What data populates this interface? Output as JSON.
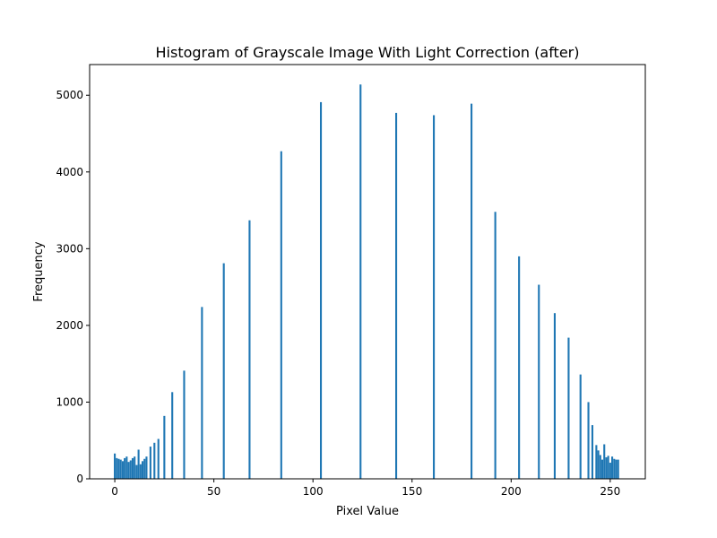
{
  "chart_data": {
    "type": "bar",
    "title": "Histogram of Grayscale Image With Light Correction (after)",
    "xlabel": "Pixel Value",
    "ylabel": "Frequency",
    "xlim": [
      -12.7,
      267.7
    ],
    "ylim": [
      0,
      5400
    ],
    "xticks": [
      0,
      50,
      100,
      150,
      200,
      250
    ],
    "yticks": [
      0,
      1000,
      2000,
      3000,
      4000,
      5000
    ],
    "bar_color": "#1f77b4",
    "grid": false,
    "bins": [
      {
        "x": 0,
        "v": 330
      },
      {
        "x": 1,
        "v": 270
      },
      {
        "x": 2,
        "v": 260
      },
      {
        "x": 3,
        "v": 250
      },
      {
        "x": 4,
        "v": 230
      },
      {
        "x": 5,
        "v": 270
      },
      {
        "x": 6,
        "v": 290
      },
      {
        "x": 7,
        "v": 220
      },
      {
        "x": 8,
        "v": 240
      },
      {
        "x": 9,
        "v": 270
      },
      {
        "x": 10,
        "v": 290
      },
      {
        "x": 11,
        "v": 180
      },
      {
        "x": 12,
        "v": 380
      },
      {
        "x": 13,
        "v": 190
      },
      {
        "x": 14,
        "v": 230
      },
      {
        "x": 15,
        "v": 260
      },
      {
        "x": 16,
        "v": 290
      },
      {
        "x": 18,
        "v": 420
      },
      {
        "x": 20,
        "v": 470
      },
      {
        "x": 22,
        "v": 520
      },
      {
        "x": 25,
        "v": 820
      },
      {
        "x": 29,
        "v": 1130
      },
      {
        "x": 35,
        "v": 1410
      },
      {
        "x": 44,
        "v": 2240
      },
      {
        "x": 55,
        "v": 2810
      },
      {
        "x": 68,
        "v": 3370
      },
      {
        "x": 84,
        "v": 4270
      },
      {
        "x": 104,
        "v": 4910
      },
      {
        "x": 124,
        "v": 5140
      },
      {
        "x": 142,
        "v": 4770
      },
      {
        "x": 161,
        "v": 4740
      },
      {
        "x": 180,
        "v": 4890
      },
      {
        "x": 192,
        "v": 3480
      },
      {
        "x": 204,
        "v": 2900
      },
      {
        "x": 214,
        "v": 2530
      },
      {
        "x": 222,
        "v": 2160
      },
      {
        "x": 229,
        "v": 1840
      },
      {
        "x": 235,
        "v": 1360
      },
      {
        "x": 239,
        "v": 1000
      },
      {
        "x": 241,
        "v": 700
      },
      {
        "x": 243,
        "v": 440
      },
      {
        "x": 244,
        "v": 370
      },
      {
        "x": 245,
        "v": 310
      },
      {
        "x": 246,
        "v": 250
      },
      {
        "x": 247,
        "v": 450
      },
      {
        "x": 248,
        "v": 280
      },
      {
        "x": 249,
        "v": 300
      },
      {
        "x": 250,
        "v": 210
      },
      {
        "x": 251,
        "v": 290
      },
      {
        "x": 252,
        "v": 260
      },
      {
        "x": 253,
        "v": 250
      },
      {
        "x": 254,
        "v": 250
      }
    ]
  }
}
